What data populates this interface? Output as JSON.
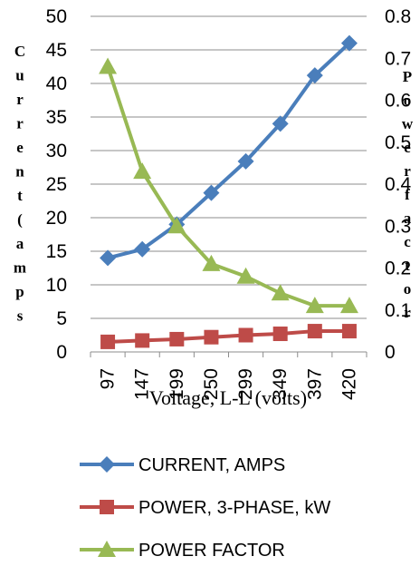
{
  "chart_data": {
    "type": "line",
    "xlabel": "Voltage, L-L (volts)",
    "ylabel": "Current (amps",
    "y2label": "Power factor",
    "categories": [
      "97",
      "147",
      "199",
      "250",
      "299",
      "349",
      "397",
      "420"
    ],
    "ylim": [
      0,
      50
    ],
    "y_ticks": [
      0,
      5,
      10,
      15,
      20,
      25,
      30,
      35,
      40,
      45,
      50
    ],
    "y2lim": [
      0,
      0.8
    ],
    "y2_ticks": [
      "0",
      "0.1",
      "0.2",
      "0.3",
      "0.4",
      "0.5",
      "0.6",
      "0.7",
      "0.8"
    ],
    "grid": true,
    "legend_position": "bottom",
    "series": [
      {
        "name": "CURRENT, AMPS",
        "axis": "left",
        "marker": "diamond",
        "color": "#4A7EBB",
        "values": [
          14.0,
          15.3,
          19.0,
          23.7,
          28.4,
          34.0,
          41.2,
          46.0
        ]
      },
      {
        "name": "POWER, 3-PHASE, kW",
        "axis": "left",
        "marker": "square",
        "color": "#BE4B48",
        "values": [
          1.5,
          1.7,
          1.9,
          2.2,
          2.5,
          2.7,
          3.1,
          3.1
        ]
      },
      {
        "name": "POWER FACTOR",
        "axis": "right",
        "marker": "triangle",
        "color": "#98B954",
        "values": [
          0.68,
          0.43,
          0.3,
          0.21,
          0.18,
          0.14,
          0.11,
          0.11
        ]
      }
    ]
  }
}
